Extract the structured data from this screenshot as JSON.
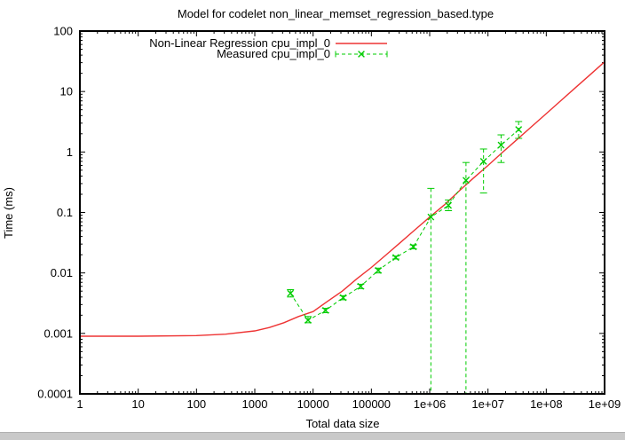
{
  "window": {
    "bottom_bar_color": "#c9c9c9"
  },
  "chart_data": {
    "type": "line",
    "title": "Model for codelet non_linear_memset_regression_based.type",
    "xlabel": "Total data size",
    "ylabel": "Time (ms)",
    "x_scale": "log",
    "y_scale": "log",
    "xlim": [
      1,
      1000000000
    ],
    "ylim": [
      0.0001,
      100
    ],
    "x_tick_labels": [
      "1",
      "10",
      "100",
      "1000",
      "10000",
      "100000",
      "1e+06",
      "1e+07",
      "1e+08",
      "1e+09"
    ],
    "y_tick_labels": [
      "0.0001",
      "0.001",
      "0.01",
      "0.1",
      "1",
      "10",
      "100"
    ],
    "grid": false,
    "legend_position": "top-center-inside",
    "axis_color": "#000000",
    "series": [
      {
        "name": "Non-Linear Regression cpu_impl_0",
        "type": "line",
        "style": "solid",
        "color": "#ee3333",
        "x": [
          1,
          10,
          100,
          316,
          1000,
          1778,
          3162,
          5623,
          10000,
          17783,
          31623,
          56234,
          100000,
          177828,
          316228,
          562341,
          1000000,
          1778279,
          3162278,
          5623413,
          10000000,
          17782794,
          31622777,
          56234133,
          100000000,
          177827941,
          316227766,
          562341325,
          1000000000
        ],
        "y": [
          0.0009,
          0.0009,
          0.00092,
          0.00097,
          0.0011,
          0.00125,
          0.0015,
          0.0019,
          0.0023,
          0.0034,
          0.005,
          0.008,
          0.0123,
          0.0198,
          0.032,
          0.052,
          0.084,
          0.133,
          0.224,
          0.37,
          0.6,
          0.99,
          1.61,
          2.64,
          4.31,
          7.06,
          11.6,
          18.9,
          31.0
        ]
      },
      {
        "name": "Measured cpu_impl_0",
        "type": "errorbar-line",
        "style": "dashed",
        "marker": "x",
        "color": "#00cc00",
        "points": [
          {
            "x": 4096,
            "y": 0.0046,
            "ylow": 0.004,
            "yhigh": 0.0053
          },
          {
            "x": 8192,
            "y": 0.00165,
            "ylow": 0.0015,
            "yhigh": 0.0019
          },
          {
            "x": 16384,
            "y": 0.0024,
            "ylow": 0.0022,
            "yhigh": 0.0026
          },
          {
            "x": 32768,
            "y": 0.0039,
            "ylow": 0.0036,
            "yhigh": 0.0042
          },
          {
            "x": 65536,
            "y": 0.006,
            "ylow": 0.0055,
            "yhigh": 0.0065
          },
          {
            "x": 131072,
            "y": 0.011,
            "ylow": 0.01,
            "yhigh": 0.012
          },
          {
            "x": 262144,
            "y": 0.018,
            "ylow": 0.017,
            "yhigh": 0.019
          },
          {
            "x": 524288,
            "y": 0.027,
            "ylow": 0.025,
            "yhigh": 0.029
          },
          {
            "x": 1048576,
            "y": 0.084,
            "ylow": 0.0001,
            "yhigh": 0.25
          },
          {
            "x": 2097152,
            "y": 0.131,
            "ylow": 0.107,
            "yhigh": 0.161
          },
          {
            "x": 4194304,
            "y": 0.34,
            "ylow": 0.0001,
            "yhigh": 0.67
          },
          {
            "x": 8388608,
            "y": 0.7,
            "ylow": 0.21,
            "yhigh": 1.12
          },
          {
            "x": 16777216,
            "y": 1.3,
            "ylow": 0.67,
            "yhigh": 1.92
          },
          {
            "x": 33554432,
            "y": 2.35,
            "ylow": 1.68,
            "yhigh": 3.19
          }
        ]
      }
    ]
  }
}
